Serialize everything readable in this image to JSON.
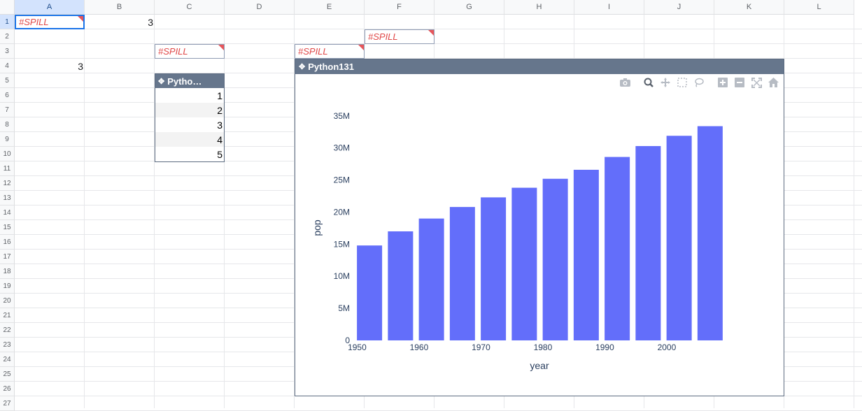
{
  "sheet": {
    "columns": [
      "A",
      "B",
      "C",
      "D",
      "E",
      "F",
      "G",
      "H",
      "I",
      "J",
      "K",
      "L"
    ],
    "rows": [
      "1",
      "2",
      "3",
      "4",
      "5",
      "6",
      "7",
      "8",
      "9",
      "10",
      "11",
      "12",
      "13",
      "14",
      "15",
      "16",
      "17",
      "18",
      "19",
      "20",
      "21",
      "22",
      "23",
      "24",
      "25",
      "26",
      "27"
    ],
    "selected_column": "A",
    "selected_row": "1"
  },
  "cells": {
    "A1": "#SPILL",
    "B1": "3",
    "F2": "#SPILL",
    "C3": "#SPILL",
    "E3": "#SPILL",
    "A4": "3"
  },
  "table": {
    "header": "Pytho…",
    "icon": "python-icon",
    "values": [
      "1",
      "2",
      "3",
      "4",
      "5"
    ]
  },
  "chart_window": {
    "title": "Python131",
    "icon": "python-icon",
    "modebar": [
      "camera-icon",
      "zoom-icon",
      "pan-icon",
      "box-select-icon",
      "lasso-icon",
      "zoom-in-icon",
      "zoom-out-icon",
      "autoscale-icon",
      "home-icon"
    ],
    "modebar_active": "zoom-icon"
  },
  "chart_data": {
    "type": "bar",
    "xlabel": "year",
    "ylabel": "pop",
    "x": [
      1952,
      1957,
      1962,
      1967,
      1972,
      1977,
      1982,
      1987,
      1992,
      1997,
      2002,
      2007
    ],
    "values": [
      14.8,
      17.0,
      19.0,
      20.8,
      22.3,
      23.8,
      25.2,
      26.6,
      28.6,
      30.3,
      31.9,
      33.4
    ],
    "value_unit": "M",
    "xticks": [
      "1950",
      "1960",
      "1970",
      "1980",
      "1990",
      "2000"
    ],
    "xtick_values": [
      1950,
      1960,
      1970,
      1980,
      1990,
      2000
    ],
    "yticks": [
      "0",
      "5M",
      "10M",
      "15M",
      "20M",
      "25M",
      "30M",
      "35M"
    ],
    "ytick_values": [
      0,
      5,
      10,
      15,
      20,
      25,
      30,
      35
    ],
    "xlim": [
      1949.5,
      2009.5
    ],
    "ylim": [
      0,
      35.2
    ],
    "bar_color": "#636efa",
    "grid": false
  }
}
